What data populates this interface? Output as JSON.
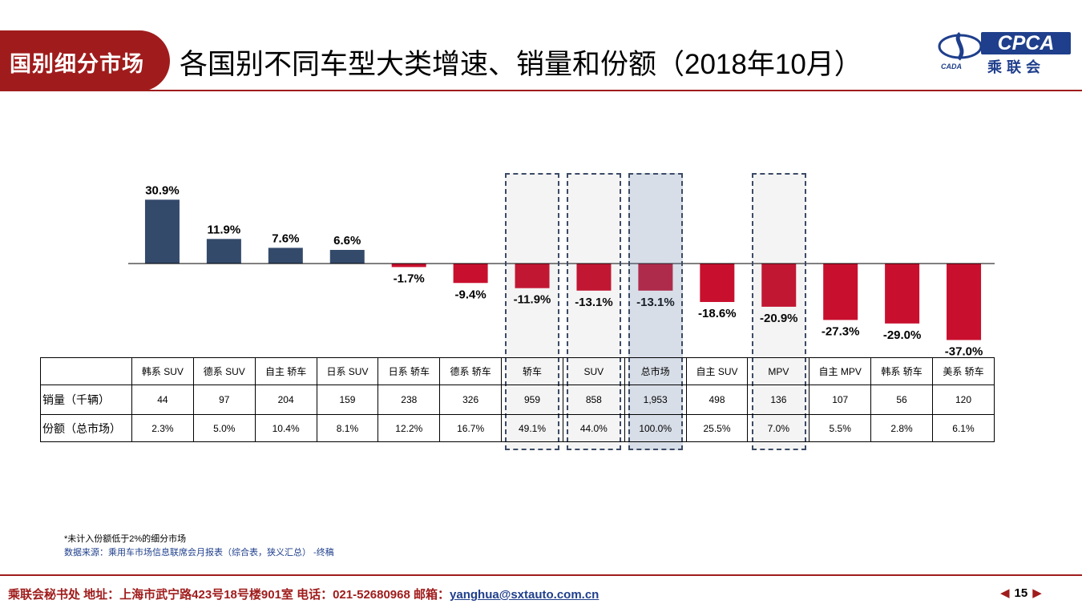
{
  "header": {
    "tag": "国别细分市场",
    "title": "各国别不同车型大类增速、销量和份额（2018年10月）"
  },
  "logo": {
    "cpca": "CPCA",
    "cn": "乘联会",
    "small": "CADA"
  },
  "chart_data": {
    "type": "bar",
    "categories": [
      "韩系 SUV",
      "德系 SUV",
      "自主 轿车",
      "日系 SUV",
      "日系 轿车",
      "德系 轿车",
      "轿车",
      "SUV",
      "总市场",
      "自主 SUV",
      "MPV",
      "自主 MPV",
      "韩系 轿车",
      "美系 轿车"
    ],
    "values": [
      30.9,
      11.9,
      7.6,
      6.6,
      -1.7,
      -9.4,
      -11.9,
      -13.1,
      -13.1,
      -18.6,
      -20.9,
      -27.3,
      -29.0,
      -37.0
    ],
    "labels": [
      "30.9%",
      "11.9%",
      "7.6%",
      "6.6%",
      "-1.7%",
      "-9.4%",
      "-11.9%",
      "-13.1%",
      "-13.1%",
      "-18.6%",
      "-20.9%",
      "-27.3%",
      "-29.0%",
      "-37.0%"
    ],
    "colors": {
      "positive": "#344a6b",
      "negative": "#c8102e"
    },
    "highlighted": [
      6,
      7,
      8,
      10
    ],
    "highlight_filled": 8
  },
  "table": {
    "row_labels": [
      "销量（千辆）",
      "份额（总市场）"
    ],
    "sales": [
      "44",
      "97",
      "204",
      "159",
      "238",
      "326",
      "959",
      "858",
      "1,953",
      "498",
      "136",
      "107",
      "56",
      "120"
    ],
    "shares": [
      "2.3%",
      "5.0%",
      "10.4%",
      "8.1%",
      "12.2%",
      "16.7%",
      "49.1%",
      "44.0%",
      "100.0%",
      "25.5%",
      "7.0%",
      "5.5%",
      "2.8%",
      "6.1%"
    ]
  },
  "notes": {
    "note": "*未计入份额低于2%的细分市场",
    "source": "数据来源：乘用车市场信息联席会月报表（综合表，狭义汇总）  -终稿"
  },
  "footer": {
    "text": "乘联会秘书处   地址：上海市武宁路423号18号楼901室  电话：021-52680968   邮箱：",
    "email": "yanghua@sxtauto.com.cn",
    "page": "15"
  }
}
